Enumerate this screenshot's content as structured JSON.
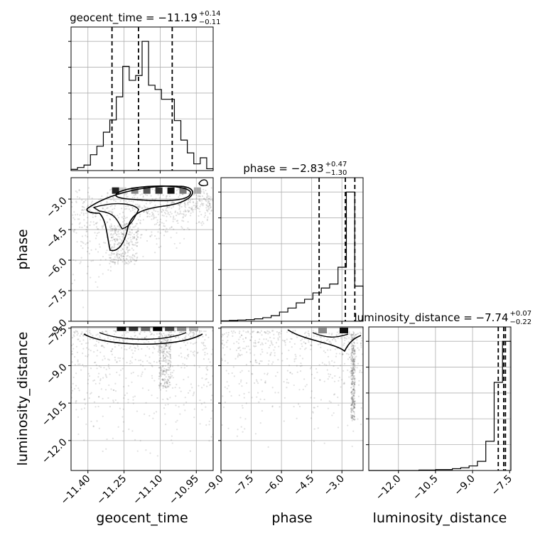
{
  "chart_data": {
    "type": "corner",
    "parameters": [
      "geocent_time",
      "phase",
      "luminosity_distance"
    ],
    "axis_labels": {
      "x": [
        "geocent_time",
        "phase",
        "luminosity_distance"
      ],
      "y": [
        "phase",
        "luminosity_distance"
      ]
    },
    "ranges": {
      "geocent_time": [
        -11.47,
        -10.88
      ],
      "phase": [
        -9.0,
        -1.95
      ],
      "luminosity_distance": [
        -13.2,
        -7.45
      ]
    },
    "ticks": {
      "geocent_time": [
        -11.4,
        -11.25,
        -11.1,
        -10.95
      ],
      "phase": [
        -9.0,
        -7.5,
        -6.0,
        -4.5,
        -3.0
      ],
      "luminosity_distance": [
        -12.0,
        -10.5,
        -9.0,
        -7.5
      ]
    },
    "tick_labels": {
      "geocent_time": [
        "−11.40",
        "−11.25",
        "−11.10",
        "−10.95"
      ],
      "phase_x": [
        "−9.0",
        "−7.5",
        "−6.0",
        "−4.5",
        "−3.0"
      ],
      "phase_y": [
        "−3.0",
        "−4.5",
        "−6.0",
        "−7.5",
        "−9.0"
      ],
      "luminosity_distance_x": [
        "−12.0",
        "−10.5",
        "−9.0",
        "−7.5"
      ],
      "luminosity_distance_y": [
        "−7.5",
        "−9.0",
        "−10.5",
        "−12.0"
      ]
    },
    "titles": [
      {
        "param": "geocent_time",
        "prefix": "geocent_time = −11.19",
        "plus": "+0.14",
        "minus": "−0.11"
      },
      {
        "param": "phase",
        "prefix": "phase = −2.83",
        "plus": "+0.47",
        "minus": "−1.30"
      },
      {
        "param": "luminosity_distance",
        "prefix": "luminosity_distance = −7.74",
        "plus": "+0.07",
        "minus": "−0.22"
      }
    ],
    "quantiles": {
      "geocent_time": [
        -11.3,
        -11.19,
        -11.05
      ],
      "phase": [
        -4.13,
        -2.83,
        -2.36
      ],
      "luminosity_distance": [
        -7.96,
        -7.74,
        -7.67
      ]
    },
    "histograms": {
      "geocent_time": {
        "edges_start": -11.47,
        "edges_end": -10.88,
        "counts": [
          2,
          5,
          9,
          26,
          40,
          63,
          83,
          121,
          171,
          148,
          156,
          212,
          140,
          133,
          117,
          117,
          82,
          50,
          29,
          11,
          21,
          3
        ]
      },
      "phase": {
        "edges_start": -9.0,
        "edges_end": -1.95,
        "counts": [
          1,
          2,
          3,
          4,
          6,
          9,
          14,
          23,
          33,
          46,
          55,
          71,
          83,
          93,
          135,
          323,
          88
        ]
      },
      "luminosity_distance": {
        "edges_start": -13.2,
        "edges_end": -7.45,
        "counts": [
          0,
          0,
          0,
          0,
          0,
          0,
          1,
          1,
          2,
          2,
          4,
          6,
          10,
          20,
          64,
          193,
          283
        ]
      }
    },
    "grid": true,
    "legend": "none"
  }
}
